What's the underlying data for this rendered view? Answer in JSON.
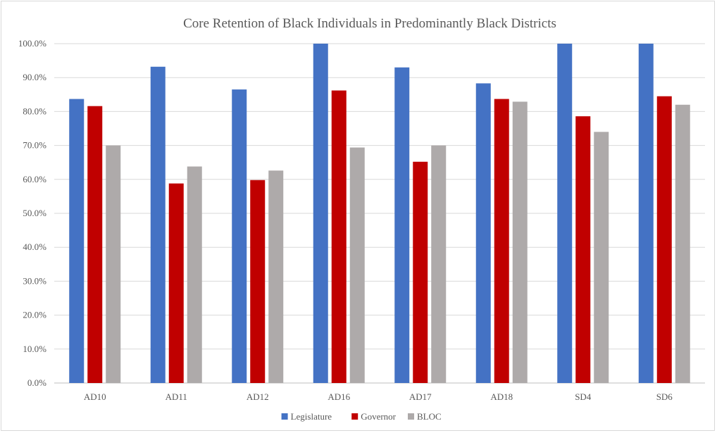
{
  "chart_data": {
    "type": "bar",
    "title": "Core Retention of Black Individuals in Predominantly Black Districts",
    "xlabel": "",
    "ylabel": "",
    "ylim": [
      0,
      100
    ],
    "ytick_step": 10,
    "ytick_format": "percent_1dp",
    "grid": true,
    "legend_position": "bottom",
    "categories": [
      "AD10",
      "AD11",
      "AD12",
      "AD16",
      "AD17",
      "AD18",
      "SD4",
      "SD6"
    ],
    "series": [
      {
        "name": "Legislature",
        "color": "#4472C4",
        "values": [
          83.7,
          93.2,
          86.5,
          100.0,
          93.0,
          88.3,
          100.0,
          100.0
        ]
      },
      {
        "name": "Governor",
        "color": "#C00000",
        "values": [
          81.6,
          58.8,
          59.8,
          86.2,
          65.2,
          83.7,
          78.6,
          84.5
        ]
      },
      {
        "name": "BLOC",
        "color": "#AEAAAA",
        "values": [
          70.0,
          63.8,
          62.6,
          69.4,
          70.0,
          82.9,
          74.0,
          82.0
        ]
      }
    ]
  }
}
